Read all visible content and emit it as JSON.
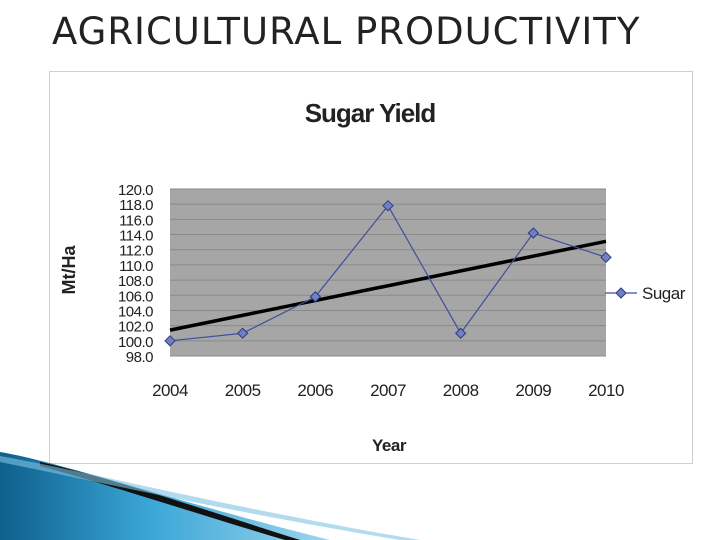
{
  "slide": {
    "title": "AGRICULTURAL PRODUCTIVITY"
  },
  "chart_data": {
    "type": "line",
    "title": "Sugar Yield",
    "xlabel": "Year",
    "ylabel": "Mt/Ha",
    "categories": [
      "2004",
      "2005",
      "2006",
      "2007",
      "2008",
      "2009",
      "2010"
    ],
    "ylim": [
      98.0,
      120.0
    ],
    "yticks": [
      "98.0",
      "100.0",
      "102.0",
      "104.0",
      "106.0",
      "108.0",
      "110.0",
      "112.0",
      "114.0",
      "116.0",
      "118.0",
      "120.0"
    ],
    "series": [
      {
        "name": "Sugar",
        "values": [
          100.0,
          101.0,
          105.8,
          117.8,
          101.0,
          114.2,
          111.0
        ],
        "color": "#3f4f9f",
        "marker": "diamond"
      }
    ],
    "trendline": {
      "type": "linear",
      "color": "#000000"
    },
    "plot_background": "#a6a6a6",
    "grid": true,
    "legend": "right"
  }
}
